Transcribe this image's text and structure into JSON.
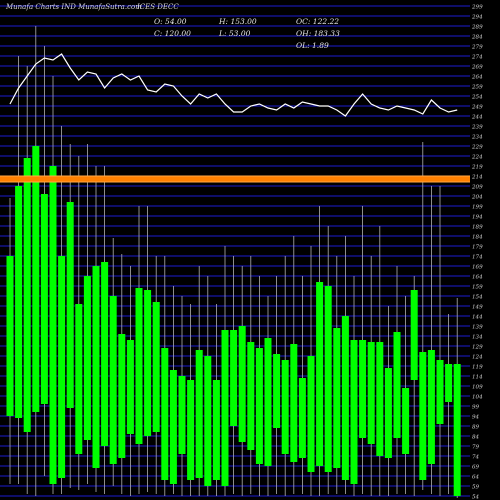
{
  "header": {
    "watermark": "Munafa Charts IND MunafaSutra.com",
    "symbol": "ICES DECC"
  },
  "stats": {
    "o": "O: 54.00",
    "h": "H: 153.00",
    "oc": "OC: 122.22",
    "c": "C: 120.00",
    "l": "L: 53.00",
    "oh": "OH: 183.33",
    "ol": "OL: 1.89"
  },
  "colors": {
    "background": "#000000",
    "grid": "#1c1cd0",
    "candle_up": "#00ff00",
    "wick": "#b0b0b0",
    "band": "#ff8000",
    "line": "#ffffff"
  },
  "chart_data": {
    "type": "candlestick",
    "y_axis": {
      "min": 54,
      "max": 299,
      "ticks": [
        "299",
        "294",
        "289",
        "284",
        "279",
        "274",
        "269",
        "264",
        "259",
        "254",
        "249",
        "244",
        "239",
        "234",
        "229",
        "224",
        "219",
        "214",
        "209",
        "204",
        "199",
        "194",
        "189",
        "184",
        "179",
        "174",
        "169",
        "164",
        "159",
        "154",
        "149",
        "144",
        "139",
        "134",
        "129",
        "124",
        "119",
        "114",
        "109",
        "104",
        "99",
        "94",
        "89",
        "84",
        "79",
        "74",
        "69",
        "64",
        "59",
        "54"
      ]
    },
    "band": {
      "low": 211,
      "high": 214
    },
    "candles": [
      {
        "open": 94,
        "close": 174,
        "high": 203,
        "low": 60
      },
      {
        "open": 93,
        "close": 209,
        "high": 274,
        "low": 60
      },
      {
        "open": 86,
        "close": 223,
        "high": 269,
        "low": 55
      },
      {
        "open": 96,
        "close": 229,
        "high": 289,
        "low": 54
      },
      {
        "open": 100,
        "close": 205,
        "high": 279,
        "low": 64
      },
      {
        "open": 60,
        "close": 219,
        "high": 264,
        "low": 55
      },
      {
        "open": 63,
        "close": 174,
        "high": 239,
        "low": 55
      },
      {
        "open": 98,
        "close": 201,
        "high": 230,
        "low": 58
      },
      {
        "open": 75,
        "close": 150,
        "high": 224,
        "low": 57
      },
      {
        "open": 82,
        "close": 164,
        "high": 230,
        "low": 60
      },
      {
        "open": 68,
        "close": 169,
        "high": 219,
        "low": 56
      },
      {
        "open": 79,
        "close": 171,
        "high": 219,
        "low": 55
      },
      {
        "open": 70,
        "close": 154,
        "high": 183,
        "low": 59
      },
      {
        "open": 73,
        "close": 135,
        "high": 175,
        "low": 55
      },
      {
        "open": 85,
        "close": 132,
        "high": 169,
        "low": 54
      },
      {
        "open": 80,
        "close": 158,
        "high": 199,
        "low": 55
      },
      {
        "open": 84,
        "close": 157,
        "high": 199,
        "low": 56
      },
      {
        "open": 86,
        "close": 151,
        "high": 174,
        "low": 55
      },
      {
        "open": 62,
        "close": 128,
        "high": 174,
        "low": 54
      },
      {
        "open": 60,
        "close": 117,
        "high": 159,
        "low": 55
      },
      {
        "open": 75,
        "close": 114,
        "high": 154,
        "low": 54
      },
      {
        "open": 62,
        "close": 112,
        "high": 150,
        "low": 54
      },
      {
        "open": 63,
        "close": 127,
        "high": 169,
        "low": 54
      },
      {
        "open": 59,
        "close": 124,
        "high": 164,
        "low": 54
      },
      {
        "open": 62,
        "close": 112,
        "high": 150,
        "low": 54
      },
      {
        "open": 59,
        "close": 137,
        "high": 179,
        "low": 54
      },
      {
        "open": 89,
        "close": 137,
        "high": 174,
        "low": 55
      },
      {
        "open": 81,
        "close": 139,
        "high": 169,
        "low": 54
      },
      {
        "open": 77,
        "close": 131,
        "high": 174,
        "low": 55
      },
      {
        "open": 70,
        "close": 128,
        "high": 164,
        "low": 54
      },
      {
        "open": 69,
        "close": 133,
        "high": 154,
        "low": 54
      },
      {
        "open": 88,
        "close": 125,
        "high": 164,
        "low": 55
      },
      {
        "open": 75,
        "close": 122,
        "high": 174,
        "low": 54
      },
      {
        "open": 71,
        "close": 130,
        "high": 184,
        "low": 55
      },
      {
        "open": 73,
        "close": 113,
        "high": 164,
        "low": 55
      },
      {
        "open": 66,
        "close": 124,
        "high": 179,
        "low": 54
      },
      {
        "open": 69,
        "close": 161,
        "high": 199,
        "low": 54
      },
      {
        "open": 66,
        "close": 159,
        "high": 189,
        "low": 55
      },
      {
        "open": 68,
        "close": 138,
        "high": 174,
        "low": 55
      },
      {
        "open": 62,
        "close": 144,
        "high": 184,
        "low": 55
      },
      {
        "open": 60,
        "close": 132,
        "high": 164,
        "low": 54
      },
      {
        "open": 83,
        "close": 132,
        "high": 199,
        "low": 55
      },
      {
        "open": 80,
        "close": 131,
        "high": 174,
        "low": 54
      },
      {
        "open": 74,
        "close": 131,
        "high": 189,
        "low": 54
      },
      {
        "open": 73,
        "close": 118,
        "high": 149,
        "low": 54
      },
      {
        "open": 83,
        "close": 136,
        "high": 169,
        "low": 55
      },
      {
        "open": 75,
        "close": 108,
        "high": 154,
        "low": 55
      },
      {
        "open": 112,
        "close": 157,
        "high": 164,
        "low": 54
      },
      {
        "open": 62,
        "close": 126,
        "high": 231,
        "low": 57
      },
      {
        "open": 70,
        "close": 127,
        "high": 209,
        "low": 55
      },
      {
        "open": 90,
        "close": 122,
        "high": 209,
        "low": 54
      },
      {
        "open": 101,
        "close": 120,
        "high": 145,
        "low": 55
      },
      {
        "open": 54,
        "close": 120,
        "high": 153,
        "low": 53
      }
    ],
    "line_series": [
      250,
      258,
      264,
      270,
      273,
      272,
      275,
      268,
      262,
      266,
      265,
      258,
      263,
      265,
      262,
      264,
      257,
      256,
      260,
      259,
      254,
      250,
      255,
      253,
      255,
      250,
      246,
      246,
      249,
      250,
      248,
      247,
      250,
      248,
      251,
      250,
      249,
      249,
      247,
      244,
      250,
      255,
      250,
      248,
      247,
      249,
      248,
      247,
      245,
      252,
      248,
      246,
      247
    ]
  }
}
